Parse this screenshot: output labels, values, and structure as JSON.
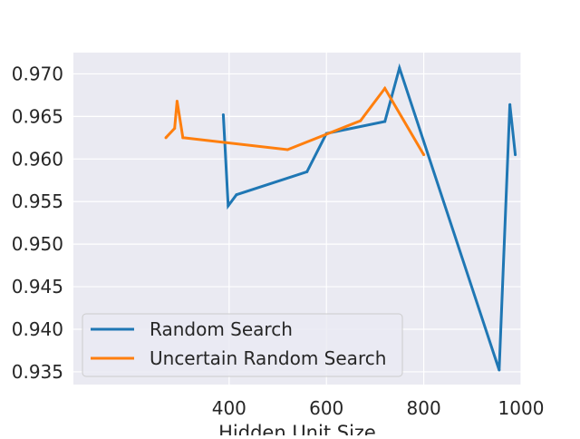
{
  "chart_data": {
    "type": "line",
    "title": "",
    "xlabel": "Hidden Unit Size",
    "ylabel": "",
    "xlim": [
      80,
      1000
    ],
    "ylim": [
      0.9335,
      0.9725
    ],
    "xticks": [
      400,
      600,
      800,
      1000
    ],
    "xtick_labels": [
      "400",
      "600",
      "800",
      "1000"
    ],
    "yticks": [
      0.935,
      0.94,
      0.945,
      0.95,
      0.955,
      0.96,
      0.965,
      0.97
    ],
    "ytick_labels": [
      "0.935",
      "0.940",
      "0.945",
      "0.950",
      "0.955",
      "0.960",
      "0.965",
      "0.970"
    ],
    "grid": true,
    "legend_position": "lower-left",
    "series": [
      {
        "name": "Random Search",
        "color": "#1f77b4",
        "x": [
          388,
          398,
          415,
          560,
          600,
          720,
          750,
          955,
          977,
          988
        ],
        "y": [
          0.9652,
          0.9545,
          0.9558,
          0.9585,
          0.963,
          0.9644,
          0.9707,
          0.9352,
          0.9664,
          0.9605
        ]
      },
      {
        "name": "Uncertain Random Search",
        "color": "#ff7f0e",
        "x": [
          270,
          288,
          293,
          305,
          520,
          670,
          720,
          800
        ],
        "y": [
          0.9625,
          0.9636,
          0.9668,
          0.9625,
          0.9611,
          0.9645,
          0.9683,
          0.9605
        ]
      }
    ]
  }
}
